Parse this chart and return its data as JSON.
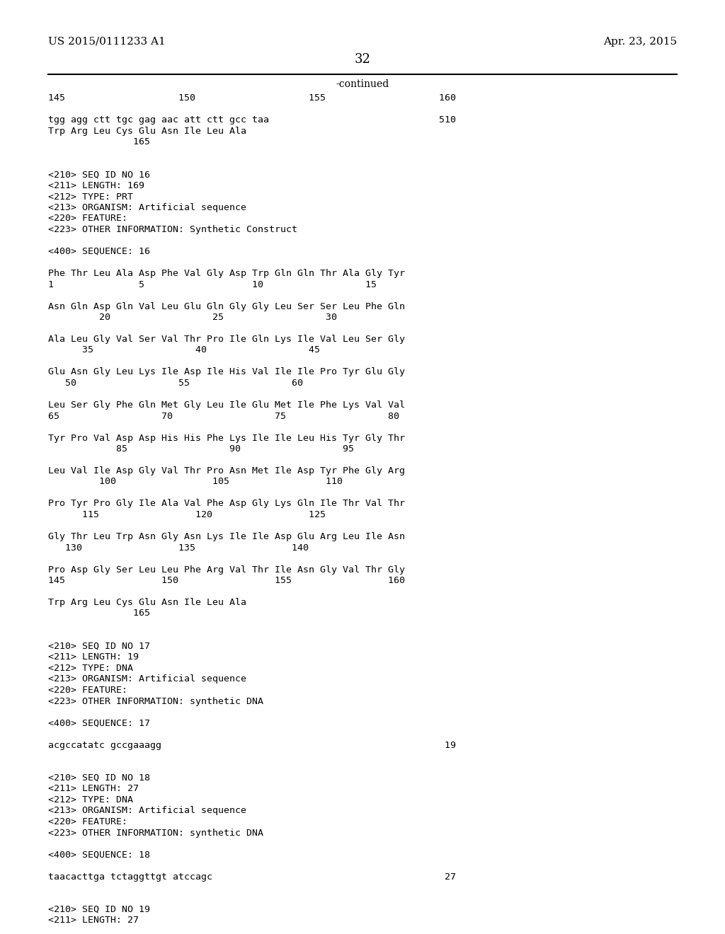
{
  "header_left": "US 2015/0111233 A1",
  "header_right": "Apr. 23, 2015",
  "page_number": "32",
  "continued_label": "-continued",
  "background_color": "#ffffff",
  "text_color": "#000000",
  "lines": [
    "145                    150                    155                    160",
    "",
    "tgg agg ctt tgc gag aac att ctt gcc taa                              510",
    "Trp Arg Leu Cys Glu Asn Ile Leu Ala",
    "               165",
    "",
    "",
    "<210> SEQ ID NO 16",
    "<211> LENGTH: 169",
    "<212> TYPE: PRT",
    "<213> ORGANISM: Artificial sequence",
    "<220> FEATURE:",
    "<223> OTHER INFORMATION: Synthetic Construct",
    "",
    "<400> SEQUENCE: 16",
    "",
    "Phe Thr Leu Ala Asp Phe Val Gly Asp Trp Gln Gln Thr Ala Gly Tyr",
    "1               5                   10                  15",
    "",
    "Asn Gln Asp Gln Val Leu Glu Gln Gly Gly Leu Ser Ser Leu Phe Gln",
    "         20                  25                  30",
    "",
    "Ala Leu Gly Val Ser Val Thr Pro Ile Gln Lys Ile Val Leu Ser Gly",
    "      35                  40                  45",
    "",
    "Glu Asn Gly Leu Lys Ile Asp Ile His Val Ile Ile Pro Tyr Glu Gly",
    "   50                  55                  60",
    "",
    "Leu Ser Gly Phe Gln Met Gly Leu Ile Glu Met Ile Phe Lys Val Val",
    "65                  70                  75                  80",
    "",
    "Tyr Pro Val Asp Asp His His Phe Lys Ile Ile Leu His Tyr Gly Thr",
    "            85                  90                  95",
    "",
    "Leu Val Ile Asp Gly Val Thr Pro Asn Met Ile Asp Tyr Phe Gly Arg",
    "         100                 105                 110",
    "",
    "Pro Tyr Pro Gly Ile Ala Val Phe Asp Gly Lys Gln Ile Thr Val Thr",
    "      115                 120                 125",
    "",
    "Gly Thr Leu Trp Asn Gly Asn Lys Ile Ile Asp Glu Arg Leu Ile Asn",
    "   130                 135                 140",
    "",
    "Pro Asp Gly Ser Leu Leu Phe Arg Val Thr Ile Asn Gly Val Thr Gly",
    "145                 150                 155                 160",
    "",
    "Trp Arg Leu Cys Glu Asn Ile Leu Ala",
    "               165",
    "",
    "",
    "<210> SEQ ID NO 17",
    "<211> LENGTH: 19",
    "<212> TYPE: DNA",
    "<213> ORGANISM: Artificial sequence",
    "<220> FEATURE:",
    "<223> OTHER INFORMATION: synthetic DNA",
    "",
    "<400> SEQUENCE: 17",
    "",
    "acgccatatc gccgaaagg                                                  19",
    "",
    "",
    "<210> SEQ ID NO 18",
    "<211> LENGTH: 27",
    "<212> TYPE: DNA",
    "<213> ORGANISM: Artificial sequence",
    "<220> FEATURE:",
    "<223> OTHER INFORMATION: synthetic DNA",
    "",
    "<400> SEQUENCE: 18",
    "",
    "taacacttga tctaggttgt atccagc                                         27",
    "",
    "",
    "<210> SEQ ID NO 19",
    "<211> LENGTH: 27"
  ]
}
